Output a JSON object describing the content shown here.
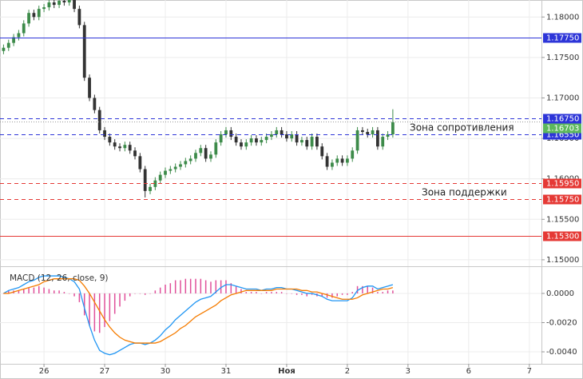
{
  "chart_data": [
    {
      "type": "candlestick",
      "x": [
        4,
        5,
        6,
        7,
        8,
        9,
        10,
        11,
        12,
        13,
        14,
        15,
        16,
        17,
        18,
        19,
        20,
        21,
        22,
        23,
        24,
        25,
        26,
        27,
        28,
        29,
        30,
        31,
        32,
        33,
        34,
        35,
        36,
        37,
        38,
        39,
        40,
        41,
        42,
        43,
        44,
        45,
        46,
        47,
        48,
        49,
        50,
        51,
        52,
        53,
        54,
        55,
        56,
        57,
        58,
        59,
        60,
        61,
        62,
        63,
        64,
        65,
        66,
        67,
        68,
        69,
        70,
        71,
        72,
        73,
        74,
        75,
        76,
        77,
        78,
        79,
        80,
        81
      ],
      "open": [
        1.1758,
        1.1762,
        1.1768,
        1.1775,
        1.178,
        1.1792,
        1.1805,
        1.18,
        1.181,
        1.1812,
        1.1818,
        1.1815,
        1.182,
        1.1818,
        1.1822,
        1.181,
        1.179,
        1.1725,
        1.17,
        1.1685,
        1.166,
        1.1652,
        1.1645,
        1.164,
        1.1638,
        1.1642,
        1.1635,
        1.1628,
        1.1612,
        1.1585,
        1.159,
        1.1598,
        1.1605,
        1.161,
        1.1612,
        1.1615,
        1.1618,
        1.1622,
        1.1625,
        1.1632,
        1.1638,
        1.1625,
        1.163,
        1.1645,
        1.1655,
        1.166,
        1.1652,
        1.1645,
        1.164,
        1.1645,
        1.165,
        1.1645,
        1.1648,
        1.1652,
        1.1655,
        1.166,
        1.1655,
        1.165,
        1.1655,
        1.1645,
        1.1648,
        1.164,
        1.1652,
        1.164,
        1.1628,
        1.1615,
        1.162,
        1.1625,
        1.162,
        1.1625,
        1.1635,
        1.166,
        1.1658,
        1.1655,
        1.166,
        1.164,
        1.1652,
        1.1655
      ],
      "high": [
        1.1766,
        1.1772,
        1.1779,
        1.1784,
        1.1796,
        1.1809,
        1.1809,
        1.1814,
        1.1816,
        1.1822,
        1.1822,
        1.1824,
        1.1824,
        1.1826,
        1.1826,
        1.1814,
        1.1794,
        1.1729,
        1.1704,
        1.1689,
        1.1664,
        1.1656,
        1.1649,
        1.1644,
        1.1646,
        1.1646,
        1.1639,
        1.1632,
        1.1616,
        1.1594,
        1.1602,
        1.1609,
        1.1614,
        1.1616,
        1.1619,
        1.1622,
        1.1626,
        1.1629,
        1.1636,
        1.1642,
        1.1642,
        1.1634,
        1.1649,
        1.1659,
        1.1664,
        1.1664,
        1.1656,
        1.1649,
        1.1649,
        1.1654,
        1.1654,
        1.1652,
        1.1656,
        1.1659,
        1.1664,
        1.1664,
        1.1659,
        1.1659,
        1.1659,
        1.1652,
        1.1652,
        1.1656,
        1.1656,
        1.1644,
        1.1632,
        1.1624,
        1.1629,
        1.1629,
        1.1629,
        1.1639,
        1.1664,
        1.1664,
        1.1662,
        1.1664,
        1.1664,
        1.1656,
        1.1659,
        1.1686
      ],
      "low": [
        1.1754,
        1.1758,
        1.1764,
        1.1771,
        1.1776,
        1.1788,
        1.1796,
        1.1796,
        1.1806,
        1.1808,
        1.1811,
        1.1811,
        1.1814,
        1.1814,
        1.1806,
        1.1786,
        1.1721,
        1.1696,
        1.1681,
        1.1656,
        1.1648,
        1.1641,
        1.1636,
        1.1634,
        1.1634,
        1.1631,
        1.1624,
        1.1608,
        1.1577,
        1.1581,
        1.1586,
        1.1594,
        1.1601,
        1.1606,
        1.1608,
        1.1611,
        1.1614,
        1.1618,
        1.1621,
        1.1628,
        1.1621,
        1.1621,
        1.1626,
        1.1641,
        1.1651,
        1.1648,
        1.1641,
        1.1636,
        1.1636,
        1.1641,
        1.1641,
        1.1641,
        1.1644,
        1.1648,
        1.1651,
        1.1651,
        1.1646,
        1.1646,
        1.1641,
        1.1641,
        1.1636,
        1.1636,
        1.1636,
        1.1624,
        1.1611,
        1.1611,
        1.1616,
        1.1616,
        1.1616,
        1.1621,
        1.1631,
        1.1654,
        1.1651,
        1.1651,
        1.1636,
        1.1636,
        1.1648,
        1.1651
      ],
      "close": [
        1.1762,
        1.1768,
        1.1775,
        1.178,
        1.1792,
        1.1805,
        1.18,
        1.181,
        1.1812,
        1.1818,
        1.1815,
        1.182,
        1.1818,
        1.1822,
        1.181,
        1.179,
        1.1725,
        1.17,
        1.1685,
        1.166,
        1.1652,
        1.1645,
        1.164,
        1.1638,
        1.1642,
        1.1635,
        1.1628,
        1.1612,
        1.1585,
        1.159,
        1.1598,
        1.1605,
        1.161,
        1.1612,
        1.1615,
        1.1618,
        1.1622,
        1.1625,
        1.1632,
        1.1638,
        1.1625,
        1.163,
        1.1645,
        1.1655,
        1.166,
        1.1652,
        1.1645,
        1.164,
        1.1645,
        1.165,
        1.1645,
        1.1648,
        1.1652,
        1.1655,
        1.166,
        1.1655,
        1.165,
        1.1655,
        1.1645,
        1.1648,
        1.164,
        1.1652,
        1.164,
        1.1628,
        1.1615,
        1.162,
        1.1625,
        1.162,
        1.1625,
        1.1635,
        1.166,
        1.1658,
        1.1655,
        1.166,
        1.164,
        1.1652,
        1.1655,
        1.167
      ],
      "up_color": "#3d8b4a",
      "down_color": "#333333",
      "xlim": [
        3.3,
        110.4
      ],
      "ylim": [
        1.1492,
        1.1821
      ],
      "xticks": [
        {
          "value": 12,
          "label": "26"
        },
        {
          "value": 24,
          "label": "27"
        },
        {
          "value": 36,
          "label": "30"
        },
        {
          "value": 48,
          "label": "31"
        },
        {
          "value": 60,
          "label": "Ноя"
        },
        {
          "value": 72,
          "label": "2"
        },
        {
          "value": 84,
          "label": "3"
        },
        {
          "value": 96,
          "label": "6"
        },
        {
          "value": 108,
          "label": "7"
        }
      ],
      "yticks": [
        {
          "value": 1.18,
          "label": "1.18000"
        },
        {
          "value": 1.175,
          "label": "1.17500"
        },
        {
          "value": 1.17,
          "label": "1.17000"
        },
        {
          "value": 1.165,
          "label": "1.16500"
        },
        {
          "value": 1.16,
          "label": "1.16000"
        },
        {
          "value": 1.155,
          "label": "1.15500"
        },
        {
          "value": 1.15,
          "label": "1.15000"
        }
      ],
      "grid": true,
      "levels": [
        {
          "value": 1.1775,
          "label": "1.17750",
          "color": "#2d35d8",
          "dashed": false
        },
        {
          "value": 1.1675,
          "label": "1.16750",
          "color": "#2d35d8",
          "dashed": true
        },
        {
          "value": 1.1655,
          "label": "1.16550",
          "color": "#2d35d8",
          "dashed": true
        },
        {
          "value": 1.1595,
          "label": "1.15950",
          "color": "#e53935",
          "dashed": true
        },
        {
          "value": 1.1575,
          "label": "1.15750",
          "color": "#e53935",
          "dashed": true
        },
        {
          "value": 1.153,
          "label": "1.15300",
          "color": "#e53935",
          "dashed": false
        }
      ],
      "current_price": {
        "value": 1.16703,
        "label": "1.16703",
        "color": "#5cb85c"
      },
      "annotations": [
        "Зона сопротивления",
        "Зона поддержки"
      ]
    },
    {
      "type": "macd",
      "title": "MACD (12, 26, close, 9)",
      "x": [
        4,
        5,
        6,
        7,
        8,
        9,
        10,
        11,
        12,
        13,
        14,
        15,
        16,
        17,
        18,
        19,
        20,
        21,
        22,
        23,
        24,
        25,
        26,
        27,
        28,
        29,
        30,
        31,
        32,
        33,
        34,
        35,
        36,
        37,
        38,
        39,
        40,
        41,
        42,
        43,
        44,
        45,
        46,
        47,
        48,
        49,
        50,
        51,
        52,
        53,
        54,
        55,
        56,
        57,
        58,
        59,
        60,
        61,
        62,
        63,
        64,
        65,
        66,
        67,
        68,
        69,
        70,
        71,
        72,
        73,
        74,
        75,
        76,
        77,
        78,
        79,
        80,
        81
      ],
      "series": [
        {
          "color": "#2196f3",
          "values": [
            0,
            0.0002,
            0.0003,
            0.0004,
            0.0006,
            0.0008,
            0.0009,
            0.0011,
            0.0012,
            0.0012,
            0.0012,
            0.0012,
            0.0011,
            0.001,
            0.0008,
            0.0003,
            -0.001,
            -0.0022,
            -0.0032,
            -0.0039,
            -0.0041,
            -0.0042,
            -0.0041,
            -0.0039,
            -0.0037,
            -0.0035,
            -0.0034,
            -0.0034,
            -0.0035,
            -0.0034,
            -0.0032,
            -0.0029,
            -0.0025,
            -0.0022,
            -0.0018,
            -0.0015,
            -0.0012,
            -0.0009,
            -0.0006,
            -0.0004,
            -0.0003,
            -0.0002,
            0.0001,
            0.0004,
            0.0006,
            0.0006,
            0.0005,
            0.0004,
            0.0003,
            0.0003,
            0.0003,
            0.0002,
            0.0003,
            0.0003,
            0.0004,
            0.0004,
            0.0003,
            0.0003,
            0.0002,
            0.0001,
            0,
            0,
            -0.0001,
            -0.0002,
            -0.0004,
            -0.0005,
            -0.0005,
            -0.0005,
            -0.0005,
            -0.0003,
            0.0002,
            0.0004,
            0.0005,
            0.0005,
            0.0003,
            0.0004,
            0.0005,
            0.0006
          ]
        },
        {
          "color": "#f57c00",
          "values": [
            0,
            0,
            0.0001,
            0.0002,
            0.0003,
            0.0004,
            0.0005,
            0.0006,
            0.0008,
            0.0009,
            0.001,
            0.001,
            0.001,
            0.001,
            0.001,
            0.0009,
            0.0005,
            0,
            -0.0006,
            -0.0012,
            -0.0018,
            -0.0023,
            -0.0027,
            -0.003,
            -0.0032,
            -0.0033,
            -0.0034,
            -0.0034,
            -0.0034,
            -0.0034,
            -0.0034,
            -0.0033,
            -0.0031,
            -0.0029,
            -0.0027,
            -0.0024,
            -0.0022,
            -0.0019,
            -0.0016,
            -0.0014,
            -0.0012,
            -0.001,
            -0.0008,
            -0.0005,
            -0.0003,
            -0.0001,
            0,
            0.0001,
            0.0002,
            0.0002,
            0.0002,
            0.0002,
            0.0002,
            0.0002,
            0.0003,
            0.0003,
            0.0003,
            0.0003,
            0.0003,
            0.0002,
            0.0002,
            0.0001,
            0.0001,
            0,
            -0.0001,
            -0.0002,
            -0.0003,
            -0.0004,
            -0.0004,
            -0.0004,
            -0.0003,
            -0.0001,
            0,
            0.0001,
            0.0002,
            0.0003,
            0.0003,
            0.0004
          ]
        }
      ],
      "histogram": {
        "color": "#e0509a",
        "values": [
          0,
          0.0002,
          0.0002,
          0.0002,
          0.0003,
          0.0004,
          0.0004,
          0.0005,
          0.0004,
          0.0003,
          0.0002,
          0.0002,
          0.0001,
          0,
          -0.0002,
          -0.0006,
          -0.0015,
          -0.0022,
          -0.0026,
          -0.0027,
          -0.0023,
          -0.0019,
          -0.0014,
          -0.0009,
          -0.0005,
          -0.0002,
          0,
          0,
          -0.0001,
          0,
          0.0002,
          0.0004,
          0.0006,
          0.0007,
          0.0009,
          0.0009,
          0.001,
          0.001,
          0.001,
          0.001,
          0.0009,
          0.0008,
          0.0009,
          0.0009,
          0.0009,
          0.0007,
          0.0005,
          0.0003,
          0.0001,
          0.0001,
          0.0001,
          0,
          0.0001,
          0.0001,
          0.0001,
          0.0001,
          0,
          0,
          -0.0001,
          -0.0001,
          -0.0002,
          -0.0001,
          -0.0002,
          -0.0002,
          -0.0003,
          -0.0003,
          -0.0002,
          -0.0001,
          -0.0001,
          0.0001,
          0.0005,
          0.0005,
          0.0005,
          0.0004,
          0.0001,
          0.0001,
          0.0002,
          0.0002
        ]
      },
      "ylim": [
        -0.00482,
        0.00164
      ],
      "yticks": [
        {
          "value": 0,
          "label": "0.0000"
        },
        {
          "value": -0.002,
          "label": "-0.0020"
        },
        {
          "value": -0.004,
          "label": "-0.0040"
        }
      ],
      "grid": true
    }
  ]
}
